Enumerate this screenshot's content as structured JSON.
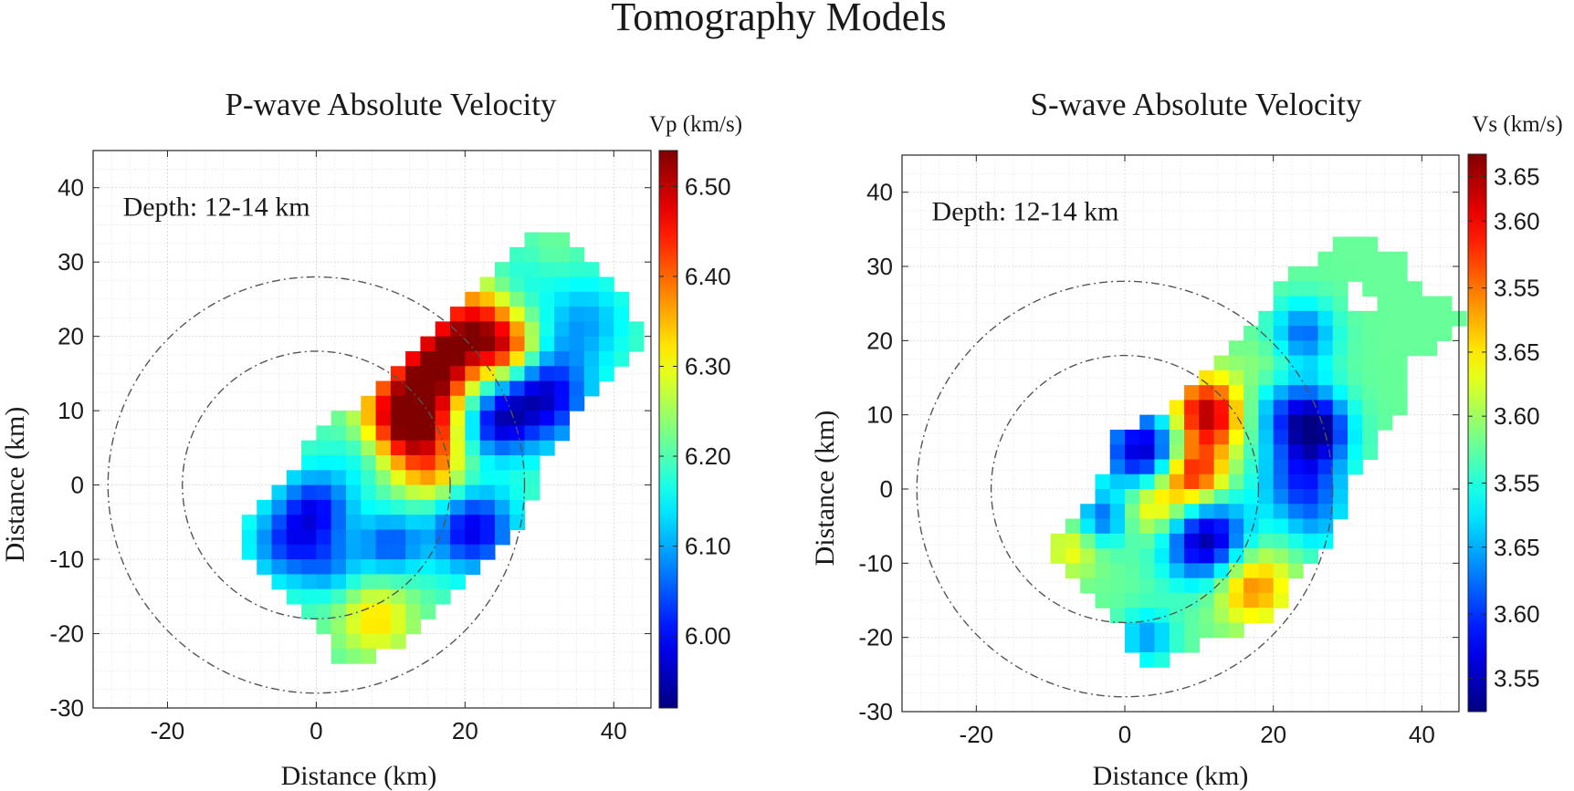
{
  "figure_title": "Tomography Models",
  "chart_data": [
    {
      "type": "heatmap",
      "title": "P-wave Absolute Velocity",
      "annotation": "Depth: 12-14 km",
      "xlabel": "Distance (km)",
      "ylabel": "Distance (km)",
      "xlim": [
        -30,
        45
      ],
      "ylim": [
        -30,
        45
      ],
      "xticks": [
        -20,
        0,
        20,
        40
      ],
      "yticks": [
        -30,
        -20,
        -10,
        0,
        10,
        20,
        30,
        40
      ],
      "xtick_labels": [
        "-20",
        "0",
        "20",
        "40"
      ],
      "ytick_labels": [
        "-30",
        "-20",
        "-10",
        "0",
        "10",
        "20",
        "30",
        "40"
      ],
      "grid": true,
      "circles": [
        {
          "center": [
            0,
            0
          ],
          "radius": 18,
          "style": "dash-dot"
        },
        {
          "center": [
            0,
            0
          ],
          "radius": 28,
          "style": "dash-dot"
        }
      ],
      "colorbar": {
        "label": "Vp (km/s)",
        "range": [
          5.92,
          6.54
        ],
        "ticks": [
          6.0,
          6.1,
          6.2,
          6.3,
          6.4,
          6.5
        ],
        "tick_labels": [
          "6.00",
          "6.10",
          "6.20",
          "6.30",
          "6.40",
          "6.50"
        ],
        "colormap": "jet reversed (low = dark red, high = dark blue)"
      },
      "cell_size_km": 2,
      "rows": [
        {
          "y": 33,
          "x_start": 29,
          "x_end": 33
        },
        {
          "y": 31,
          "x_start": 27,
          "x_end": 35
        },
        {
          "y": 29,
          "x_start": 25,
          "x_end": 37
        },
        {
          "y": 27,
          "x_start": 23,
          "x_end": 39
        },
        {
          "y": 25,
          "x_start": 21,
          "x_end": 41
        },
        {
          "y": 23,
          "x_start": 19,
          "x_end": 41
        },
        {
          "y": 21,
          "x_start": 17,
          "x_end": 43
        },
        {
          "y": 19,
          "x_start": 15,
          "x_end": 43
        },
        {
          "y": 17,
          "x_start": 13,
          "x_end": 41
        },
        {
          "y": 15,
          "x_start": 11,
          "x_end": 39
        },
        {
          "y": 13,
          "x_start": 9,
          "x_end": 37
        },
        {
          "y": 11,
          "x_start": 7,
          "x_end": 35
        },
        {
          "y": 9,
          "x_start": 3,
          "x_end": 33
        },
        {
          "y": 7,
          "x_start": 1,
          "x_end": 33
        },
        {
          "y": 5,
          "x_start": -1,
          "x_end": 31
        },
        {
          "y": 3,
          "x_start": -1,
          "x_end": 29
        },
        {
          "y": 1,
          "x_start": -3,
          "x_end": 29
        },
        {
          "y": -1,
          "x_start": -5,
          "x_end": 29
        },
        {
          "y": -3,
          "x_start": -7,
          "x_end": 27
        },
        {
          "y": -5,
          "x_start": -9,
          "x_end": 27
        },
        {
          "y": -7,
          "x_start": -9,
          "x_end": 25
        },
        {
          "y": -9,
          "x_start": -9,
          "x_end": 23
        },
        {
          "y": -11,
          "x_start": -7,
          "x_end": 21
        },
        {
          "y": -13,
          "x_start": -5,
          "x_end": 19
        },
        {
          "y": -15,
          "x_start": -3,
          "x_end": 17
        },
        {
          "y": -17,
          "x_start": -1,
          "x_end": 15
        },
        {
          "y": -19,
          "x_start": 1,
          "x_end": 13
        },
        {
          "y": -21,
          "x_start": 3,
          "x_end": 11
        },
        {
          "y": -23,
          "x_start": 3,
          "x_end": 7
        }
      ],
      "base_value": 6.2,
      "anomalies": [
        {
          "x": 12,
          "y": 10,
          "value": 6.5,
          "radius": 4
        },
        {
          "x": 16,
          "y": 16,
          "value": 6.47,
          "radius": 3.5
        },
        {
          "x": 21,
          "y": 21,
          "value": 6.48,
          "radius": 4
        },
        {
          "x": 26,
          "y": 18,
          "value": 6.4,
          "radius": 3
        },
        {
          "x": 14,
          "y": 6,
          "value": 6.36,
          "radius": 4
        },
        {
          "x": 8,
          "y": -18,
          "value": 6.33,
          "radius": 3.5
        },
        {
          "x": 16,
          "y": 1,
          "value": 6.3,
          "radius": 3
        },
        {
          "x": 30,
          "y": 12,
          "value": 5.95,
          "radius": 4.5
        },
        {
          "x": 24,
          "y": 8,
          "value": 6.03,
          "radius": 3
        },
        {
          "x": 21,
          "y": -6,
          "value": 5.98,
          "radius": 4
        },
        {
          "x": 0,
          "y": -3,
          "value": 6.02,
          "radius": 3.5
        },
        {
          "x": -4,
          "y": -8,
          "value": 6.05,
          "radius": 3.5
        },
        {
          "x": 2,
          "y": -11,
          "value": 6.1,
          "radius": 3
        },
        {
          "x": 10,
          "y": -8,
          "value": 6.05,
          "radius": 3
        },
        {
          "x": 36,
          "y": 22,
          "value": 6.1,
          "radius": 4
        },
        {
          "x": 27,
          "y": 27,
          "value": 6.16,
          "radius": 3
        },
        {
          "x": 6,
          "y": 4,
          "value": 6.15,
          "radius": 3
        },
        {
          "x": 22,
          "y": -13,
          "value": 6.2,
          "radius": 3
        },
        {
          "x": 32,
          "y": 32,
          "value": 6.22,
          "radius": 2
        }
      ]
    },
    {
      "type": "heatmap",
      "title": "S-wave Absolute Velocity",
      "annotation": "Depth: 12-14 km",
      "xlabel": "Distance (km)",
      "ylabel": "Distance (km)",
      "xlim": [
        -30,
        45
      ],
      "ylim": [
        -30,
        45
      ],
      "xticks": [
        -20,
        0,
        20,
        40
      ],
      "yticks": [
        -30,
        -20,
        -10,
        0,
        10,
        20,
        30,
        40
      ],
      "xtick_labels": [
        "-20",
        "0",
        "20",
        "40"
      ],
      "ytick_labels": [
        "-30",
        "-20",
        "-10",
        "0",
        "10",
        "20",
        "30",
        "40"
      ],
      "grid": true,
      "circles": [
        {
          "center": [
            0,
            0
          ],
          "radius": 18,
          "style": "dash-dot"
        },
        {
          "center": [
            0,
            0
          ],
          "radius": 28,
          "style": "dash-dot"
        }
      ],
      "colorbar": {
        "label": "Vs (km/s)",
        "range": [
          3.505,
          3.705
        ],
        "ticks": [
          3.54,
          3.565,
          3.59,
          3.615,
          3.64,
          3.665,
          3.69
        ],
        "tick_labels": [
          "3.55",
          "3.60",
          "3.65",
          "3.55",
          "3.60",
          "3.65",
          "3.55",
          "3.60",
          "3.65"
        ],
        "label_positions": [
          3.517,
          3.54,
          3.564,
          3.587,
          3.611,
          3.634,
          3.657,
          3.681,
          3.697
        ],
        "colormap": "jet reversed (low = dark red, high = dark blue)"
      },
      "cell_size_km": 2,
      "rows": [
        {
          "y": 33,
          "x_start": 29,
          "x_end": 33
        },
        {
          "y": 31,
          "x_start": 27,
          "x_end": 37
        },
        {
          "y": 29,
          "x_start": 23,
          "x_end": 37
        },
        {
          "y": 27,
          "x_start": 21,
          "x_end": 39
        },
        {
          "y": 25,
          "x_start": 21,
          "x_end": 43
        },
        {
          "y": 23,
          "x_start": 19,
          "x_end": 45
        },
        {
          "y": 21,
          "x_start": 17,
          "x_end": 43
        },
        {
          "y": 19,
          "x_start": 15,
          "x_end": 41
        },
        {
          "y": 17,
          "x_start": 13,
          "x_end": 37
        },
        {
          "y": 15,
          "x_start": 11,
          "x_end": 37
        },
        {
          "y": 13,
          "x_start": 9,
          "x_end": 37
        },
        {
          "y": 11,
          "x_start": 7,
          "x_end": 37
        },
        {
          "y": 9,
          "x_start": 3,
          "x_end": 35
        },
        {
          "y": 7,
          "x_start": -1,
          "x_end": 33
        },
        {
          "y": 5,
          "x_start": -1,
          "x_end": 33
        },
        {
          "y": 3,
          "x_start": -1,
          "x_end": 31
        },
        {
          "y": 1,
          "x_start": -3,
          "x_end": 29
        },
        {
          "y": -1,
          "x_start": -3,
          "x_end": 29
        },
        {
          "y": -3,
          "x_start": -5,
          "x_end": 29
        },
        {
          "y": -5,
          "x_start": -7,
          "x_end": 27
        },
        {
          "y": -7,
          "x_start": -9,
          "x_end": 27
        },
        {
          "y": -9,
          "x_start": -9,
          "x_end": 25
        },
        {
          "y": -11,
          "x_start": -7,
          "x_end": 23
        },
        {
          "y": -13,
          "x_start": -5,
          "x_end": 21
        },
        {
          "y": -15,
          "x_start": -3,
          "x_end": 21
        },
        {
          "y": -17,
          "x_start": -1,
          "x_end": 19
        },
        {
          "y": -19,
          "x_start": 1,
          "x_end": 15
        },
        {
          "y": -21,
          "x_start": 1,
          "x_end": 9
        },
        {
          "y": -23,
          "x_start": 3,
          "x_end": 5
        }
      ],
      "holes": [
        {
          "x": 31,
          "y": 25
        },
        {
          "x": 33,
          "y": 25
        },
        {
          "x": 31,
          "y": 27
        }
      ],
      "base_value": 3.6,
      "anomalies": [
        {
          "x": 3,
          "y": 5,
          "value": 3.51,
          "radius": 4
        },
        {
          "x": 11,
          "y": -7,
          "value": 3.51,
          "radius": 4
        },
        {
          "x": 11,
          "y": 10,
          "value": 3.7,
          "radius": 3.5
        },
        {
          "x": 9,
          "y": 2,
          "value": 3.69,
          "radius": 3
        },
        {
          "x": 17,
          "y": -13,
          "value": 3.66,
          "radius": 3.5
        },
        {
          "x": 4,
          "y": -2,
          "value": 3.65,
          "radius": 3
        },
        {
          "x": 22,
          "y": 11,
          "value": 3.55,
          "radius": 4
        },
        {
          "x": 26,
          "y": 8,
          "value": 3.53,
          "radius": 3
        },
        {
          "x": 24,
          "y": 1,
          "value": 3.54,
          "radius": 4
        },
        {
          "x": 24,
          "y": 21,
          "value": 3.55,
          "radius": 3
        },
        {
          "x": -3,
          "y": -4,
          "value": 3.55,
          "radius": 2.5
        },
        {
          "x": 3,
          "y": -20,
          "value": 3.56,
          "radius": 2.5
        },
        {
          "x": 26,
          "y": -5,
          "value": 3.58,
          "radius": 3
        },
        {
          "x": -7,
          "y": -8,
          "value": 3.63,
          "radius": 2.5
        },
        {
          "x": 20,
          "y": 16,
          "value": 3.62,
          "radius": 3
        }
      ]
    }
  ]
}
